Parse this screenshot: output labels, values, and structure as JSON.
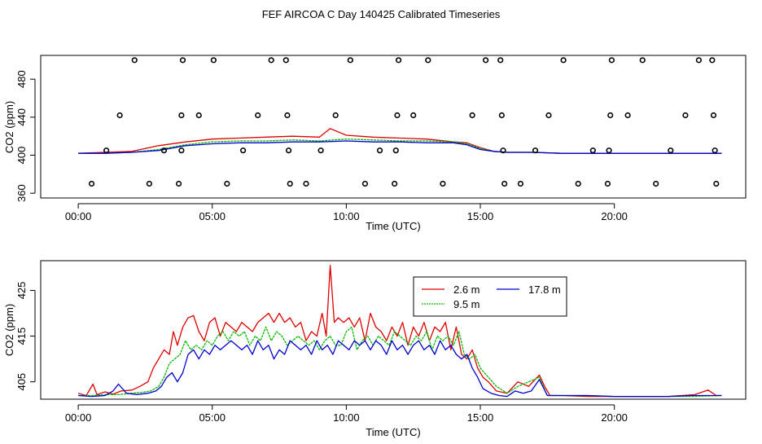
{
  "title": "FEF AIRCOA C  Day 140425  Calibrated Timeseries",
  "colors": {
    "s1": "#dd0000",
    "s2": "#00bb00",
    "s3": "#0000cc",
    "axis": "#000000"
  },
  "chart_data": [
    {
      "type": "scatter+line",
      "ylabel": "CO2 (ppm)",
      "xlabel": "Time (UTC)",
      "xlim": [
        -1.4,
        24.9
      ],
      "ylim": [
        355,
        505
      ],
      "x_ticks": [
        0,
        5,
        10,
        15,
        20
      ],
      "x_tick_labels": [
        "00:00",
        "05:00",
        "10:00",
        "15:00",
        "20:00"
      ],
      "y_ticks": [
        360,
        400,
        440,
        480
      ],
      "y_tick_labels": [
        "360",
        "400",
        "440",
        "480"
      ],
      "points": [
        [
          0.5,
          370
        ],
        [
          1.05,
          405
        ],
        [
          1.55,
          442
        ],
        [
          2.1,
          500
        ],
        [
          2.65,
          370
        ],
        [
          3.2,
          405
        ],
        [
          3.75,
          370
        ],
        [
          3.85,
          405
        ],
        [
          3.85,
          442
        ],
        [
          3.9,
          500
        ],
        [
          4.5,
          442
        ],
        [
          5.05,
          500
        ],
        [
          5.55,
          370
        ],
        [
          6.15,
          405
        ],
        [
          6.7,
          442
        ],
        [
          7.2,
          500
        ],
        [
          7.75,
          500
        ],
        [
          7.8,
          442
        ],
        [
          7.85,
          405
        ],
        [
          7.9,
          370
        ],
        [
          8.5,
          370
        ],
        [
          9.05,
          405
        ],
        [
          9.6,
          442
        ],
        [
          10.15,
          500
        ],
        [
          10.7,
          370
        ],
        [
          11.25,
          405
        ],
        [
          11.8,
          370
        ],
        [
          11.85,
          405
        ],
        [
          11.9,
          442
        ],
        [
          11.95,
          500
        ],
        [
          12.5,
          442
        ],
        [
          13.05,
          500
        ],
        [
          13.6,
          370
        ],
        [
          14.7,
          442
        ],
        [
          15.2,
          500
        ],
        [
          15.75,
          500
        ],
        [
          15.8,
          442
        ],
        [
          15.85,
          405
        ],
        [
          15.9,
          370
        ],
        [
          16.5,
          370
        ],
        [
          17.05,
          405
        ],
        [
          17.55,
          442
        ],
        [
          18.1,
          500
        ],
        [
          18.65,
          370
        ],
        [
          19.2,
          405
        ],
        [
          19.75,
          370
        ],
        [
          19.8,
          405
        ],
        [
          19.85,
          442
        ],
        [
          19.9,
          500
        ],
        [
          20.5,
          442
        ],
        [
          21.05,
          500
        ],
        [
          21.55,
          370
        ],
        [
          22.1,
          405
        ],
        [
          22.65,
          442
        ],
        [
          23.15,
          500
        ],
        [
          23.65,
          500
        ],
        [
          23.7,
          442
        ],
        [
          23.75,
          405
        ],
        [
          23.8,
          370
        ]
      ],
      "series": [
        {
          "name": "2.6 m",
          "x": [
            0,
            1,
            2,
            3,
            4,
            5,
            6,
            7,
            8,
            9,
            9.4,
            10,
            11,
            12,
            13,
            14,
            14.5,
            15,
            15.5,
            16,
            17,
            18,
            19,
            20,
            21,
            22,
            23,
            23.5,
            24
          ],
          "y": [
            402,
            403,
            404,
            410,
            414,
            417,
            418,
            419,
            420,
            419,
            428,
            421,
            419,
            418,
            417,
            414,
            413,
            408,
            404,
            403,
            403,
            402,
            402,
            402,
            402,
            402,
            402,
            402,
            402
          ]
        },
        {
          "name": "9.5 m",
          "x": [
            0,
            1,
            2,
            3,
            4,
            5,
            6,
            7,
            8,
            9,
            10,
            11,
            12,
            13,
            14,
            14.5,
            15,
            15.5,
            16,
            17,
            18,
            19,
            20,
            21,
            22,
            23,
            24
          ],
          "y": [
            402,
            402,
            403,
            406,
            411,
            414,
            415,
            415,
            416,
            415,
            417,
            416,
            415,
            415,
            414,
            412,
            407,
            404,
            403,
            403,
            402,
            402,
            402,
            402,
            402,
            402,
            402
          ]
        },
        {
          "name": "17.8 m",
          "x": [
            0,
            1,
            2,
            3,
            4,
            5,
            6,
            7,
            8,
            9,
            10,
            11,
            12,
            13,
            14,
            14.5,
            15,
            15.5,
            16,
            17,
            18,
            19,
            20,
            21,
            22,
            23,
            24
          ],
          "y": [
            402,
            402,
            403,
            405,
            410,
            412,
            413,
            413,
            414,
            414,
            415,
            414,
            414,
            413,
            413,
            411,
            406,
            404,
            403,
            403,
            402,
            402,
            402,
            402,
            402,
            402,
            402
          ]
        }
      ]
    },
    {
      "type": "line",
      "ylabel": "CO2 (ppm)",
      "xlabel": "Time (UTC)",
      "xlim": [
        -1.4,
        24.9
      ],
      "ylim": [
        401.2,
        431.5
      ],
      "x_ticks": [
        0,
        5,
        10,
        15,
        20
      ],
      "x_tick_labels": [
        "00:00",
        "05:00",
        "10:00",
        "15:00",
        "20:00"
      ],
      "y_ticks": [
        405,
        415,
        425
      ],
      "y_tick_labels": [
        "405",
        "415",
        "425"
      ],
      "legend": {
        "placement": "top-right-inside",
        "entries": [
          "2.6 m",
          "9.5 m",
          "17.8 m"
        ]
      },
      "series": [
        {
          "name": "2.6 m",
          "x": [
            0,
            0.3,
            0.55,
            0.7,
            1,
            1.3,
            1.6,
            2,
            2.3,
            2.6,
            2.8,
            3.0,
            3.2,
            3.4,
            3.55,
            3.7,
            3.9,
            4.1,
            4.3,
            4.5,
            4.7,
            4.9,
            5.1,
            5.3,
            5.5,
            5.7,
            5.9,
            6.1,
            6.3,
            6.5,
            6.7,
            6.9,
            7.1,
            7.3,
            7.5,
            7.7,
            7.9,
            8.1,
            8.3,
            8.5,
            8.7,
            8.9,
            9.1,
            9.25,
            9.4,
            9.55,
            9.7,
            9.9,
            10.1,
            10.3,
            10.5,
            10.7,
            10.9,
            11.1,
            11.3,
            11.5,
            11.7,
            11.9,
            12.1,
            12.3,
            12.5,
            12.7,
            12.9,
            13.1,
            13.3,
            13.5,
            13.7,
            13.9,
            14.1,
            14.3,
            14.5,
            14.7,
            14.9,
            15.1,
            15.3,
            15.6,
            16.0,
            16.4,
            16.8,
            17.2,
            17.4,
            17.6,
            18.0,
            19.0,
            20.0,
            21.0,
            22.0,
            23.0,
            23.5,
            23.8,
            24
          ],
          "y": [
            402.5,
            402,
            404.5,
            402.2,
            402.8,
            402.3,
            403,
            403.2,
            404,
            405,
            408,
            410,
            412,
            411,
            416,
            413,
            417,
            419,
            419.5,
            416,
            414,
            418,
            419,
            415,
            418,
            417,
            416,
            418,
            417,
            416,
            418,
            419,
            420,
            418,
            420,
            418,
            419,
            417,
            418,
            414,
            416,
            415,
            420,
            415,
            430.5,
            418,
            419,
            418,
            419,
            417,
            419,
            414,
            420,
            417,
            416,
            414,
            417,
            415,
            418,
            413,
            417,
            415,
            418,
            414,
            417,
            416,
            418,
            412,
            417,
            411,
            410,
            412,
            408,
            406,
            405,
            403,
            402.5,
            405,
            404,
            406.5,
            404,
            402,
            402,
            401.8,
            401.8,
            401.8,
            401.8,
            402.2,
            403.2,
            402,
            402
          ]
        },
        {
          "name": "9.5 m",
          "x": [
            0,
            0.5,
            1,
            1.5,
            2,
            2.4,
            2.7,
            3.0,
            3.2,
            3.4,
            3.6,
            3.8,
            4.0,
            4.2,
            4.4,
            4.6,
            4.8,
            5.0,
            5.2,
            5.4,
            5.6,
            5.8,
            6.0,
            6.2,
            6.4,
            6.6,
            6.8,
            7.0,
            7.2,
            7.4,
            7.6,
            7.8,
            8.0,
            8.2,
            8.4,
            8.6,
            8.8,
            9.0,
            9.2,
            9.4,
            9.6,
            9.8,
            10.0,
            10.2,
            10.4,
            10.6,
            10.8,
            11.0,
            11.2,
            11.4,
            11.6,
            11.8,
            12.0,
            12.2,
            12.4,
            12.6,
            12.8,
            13.0,
            13.2,
            13.4,
            13.6,
            13.8,
            14.0,
            14.2,
            14.4,
            14.6,
            14.8,
            15.0,
            15.3,
            15.6,
            16.0,
            16.4,
            16.8,
            17.2,
            17.5,
            18.0,
            19.0,
            20.0,
            21.0,
            22.0,
            23.0,
            24
          ],
          "y": [
            402,
            402,
            402.2,
            402.2,
            402.5,
            402.7,
            403,
            404,
            406,
            409,
            410,
            411,
            414,
            412,
            413,
            412,
            414,
            413,
            415,
            416,
            414,
            416,
            415,
            416,
            413,
            415,
            414,
            417,
            414,
            416,
            415,
            413,
            414,
            415,
            414,
            413,
            414,
            412,
            414,
            415,
            413,
            413,
            416,
            417,
            412,
            414,
            415,
            413,
            415,
            414,
            413,
            416,
            415,
            414,
            413,
            415,
            414,
            416,
            412,
            415,
            414,
            415,
            413,
            416,
            411,
            410,
            411,
            408,
            406,
            404,
            402.5,
            404,
            405,
            406,
            402,
            402,
            402,
            401.8,
            401.8,
            401.8,
            401.8,
            402
          ]
        },
        {
          "name": "17.8 m",
          "x": [
            0,
            0.5,
            1,
            1.3,
            1.5,
            1.8,
            2.2,
            2.6,
            2.9,
            3.1,
            3.3,
            3.5,
            3.7,
            3.9,
            4.1,
            4.3,
            4.5,
            4.7,
            4.9,
            5.1,
            5.3,
            5.5,
            5.7,
            5.9,
            6.1,
            6.3,
            6.5,
            6.7,
            6.9,
            7.1,
            7.3,
            7.5,
            7.7,
            7.9,
            8.1,
            8.3,
            8.5,
            8.7,
            8.9,
            9.1,
            9.3,
            9.5,
            9.7,
            9.9,
            10.1,
            10.3,
            10.5,
            10.7,
            10.9,
            11.1,
            11.3,
            11.5,
            11.7,
            11.9,
            12.1,
            12.3,
            12.5,
            12.7,
            12.9,
            13.1,
            13.3,
            13.5,
            13.7,
            13.9,
            14.1,
            14.3,
            14.5,
            14.7,
            14.9,
            15.1,
            15.4,
            15.7,
            16.0,
            16.3,
            16.6,
            16.9,
            17.2,
            17.5,
            18.0,
            19.0,
            20.0,
            21.0,
            22.0,
            23.0,
            24
          ],
          "y": [
            402,
            401.8,
            402,
            403,
            404.5,
            402.5,
            402.2,
            402.5,
            403,
            404,
            406,
            407,
            405,
            407,
            411,
            412,
            410,
            412,
            411,
            413,
            412,
            413,
            414,
            413,
            412,
            413,
            411,
            414,
            412,
            413,
            410,
            412,
            411,
            414,
            413,
            412,
            413,
            411,
            414,
            412,
            413,
            411,
            414,
            413,
            412,
            414,
            413,
            414,
            412,
            414,
            413,
            411,
            414,
            412,
            413,
            411,
            413,
            414,
            412,
            413,
            411,
            414,
            412,
            413,
            411,
            410,
            411,
            408,
            406,
            403.5,
            402.5,
            402,
            401.8,
            403,
            402.5,
            403,
            405.5,
            402,
            402,
            402,
            401.8,
            401.8,
            401.8,
            402,
            402
          ]
        }
      ]
    }
  ]
}
